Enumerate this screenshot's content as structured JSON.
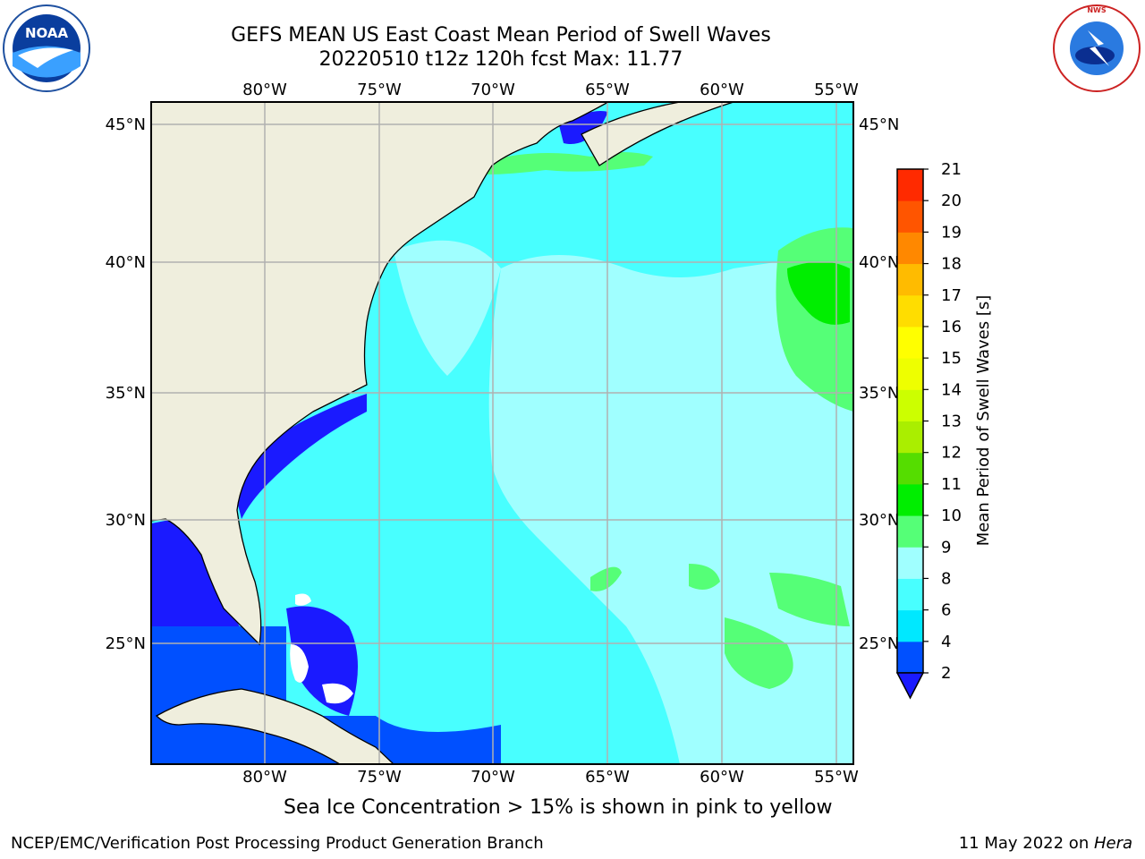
{
  "title": {
    "line1": "GEFS MEAN US East Coast Mean Period of Swell Waves",
    "line2": "20220510 t12z 120h fcst   Max: 11.77"
  },
  "axes": {
    "lon_labels": [
      "80°W",
      "75°W",
      "70°W",
      "65°W",
      "60°W",
      "55°W"
    ],
    "lat_labels": [
      "45°N",
      "40°N",
      "35°N",
      "30°N",
      "25°N"
    ]
  },
  "colorbar": {
    "label": "Mean Period of Swell Waves [s]",
    "ticks": [
      "2",
      "4",
      "6",
      "8",
      "9",
      "10",
      "11",
      "12",
      "13",
      "14",
      "15",
      "16",
      "17",
      "18",
      "19",
      "20",
      "21"
    ],
    "colors": [
      "#0050ff",
      "#00e8ff",
      "#48ffff",
      "#a0ffff",
      "#55ff77",
      "#00ee00",
      "#55dd00",
      "#aaee00",
      "#ccff00",
      "#eeff00",
      "#ffff00",
      "#ffdd00",
      "#ffbb00",
      "#ff8800",
      "#ff5500",
      "#ff2a00"
    ],
    "extend_color": "#1a1aff"
  },
  "footer": {
    "note": "Sea Ice Concentration > 15% is shown in pink to yellow",
    "credit": "NCEP/EMC/Verification Post Processing Product Generation Branch",
    "date": "11 May 2022 on ",
    "machine": "Hera"
  },
  "logos": {
    "left": "NOAA",
    "right": "NATIONAL WEATHER SERVICE"
  },
  "colors": {
    "land": "#efeedd",
    "ocean_base": "#48ffff",
    "grid": "#b0b0b0"
  }
}
